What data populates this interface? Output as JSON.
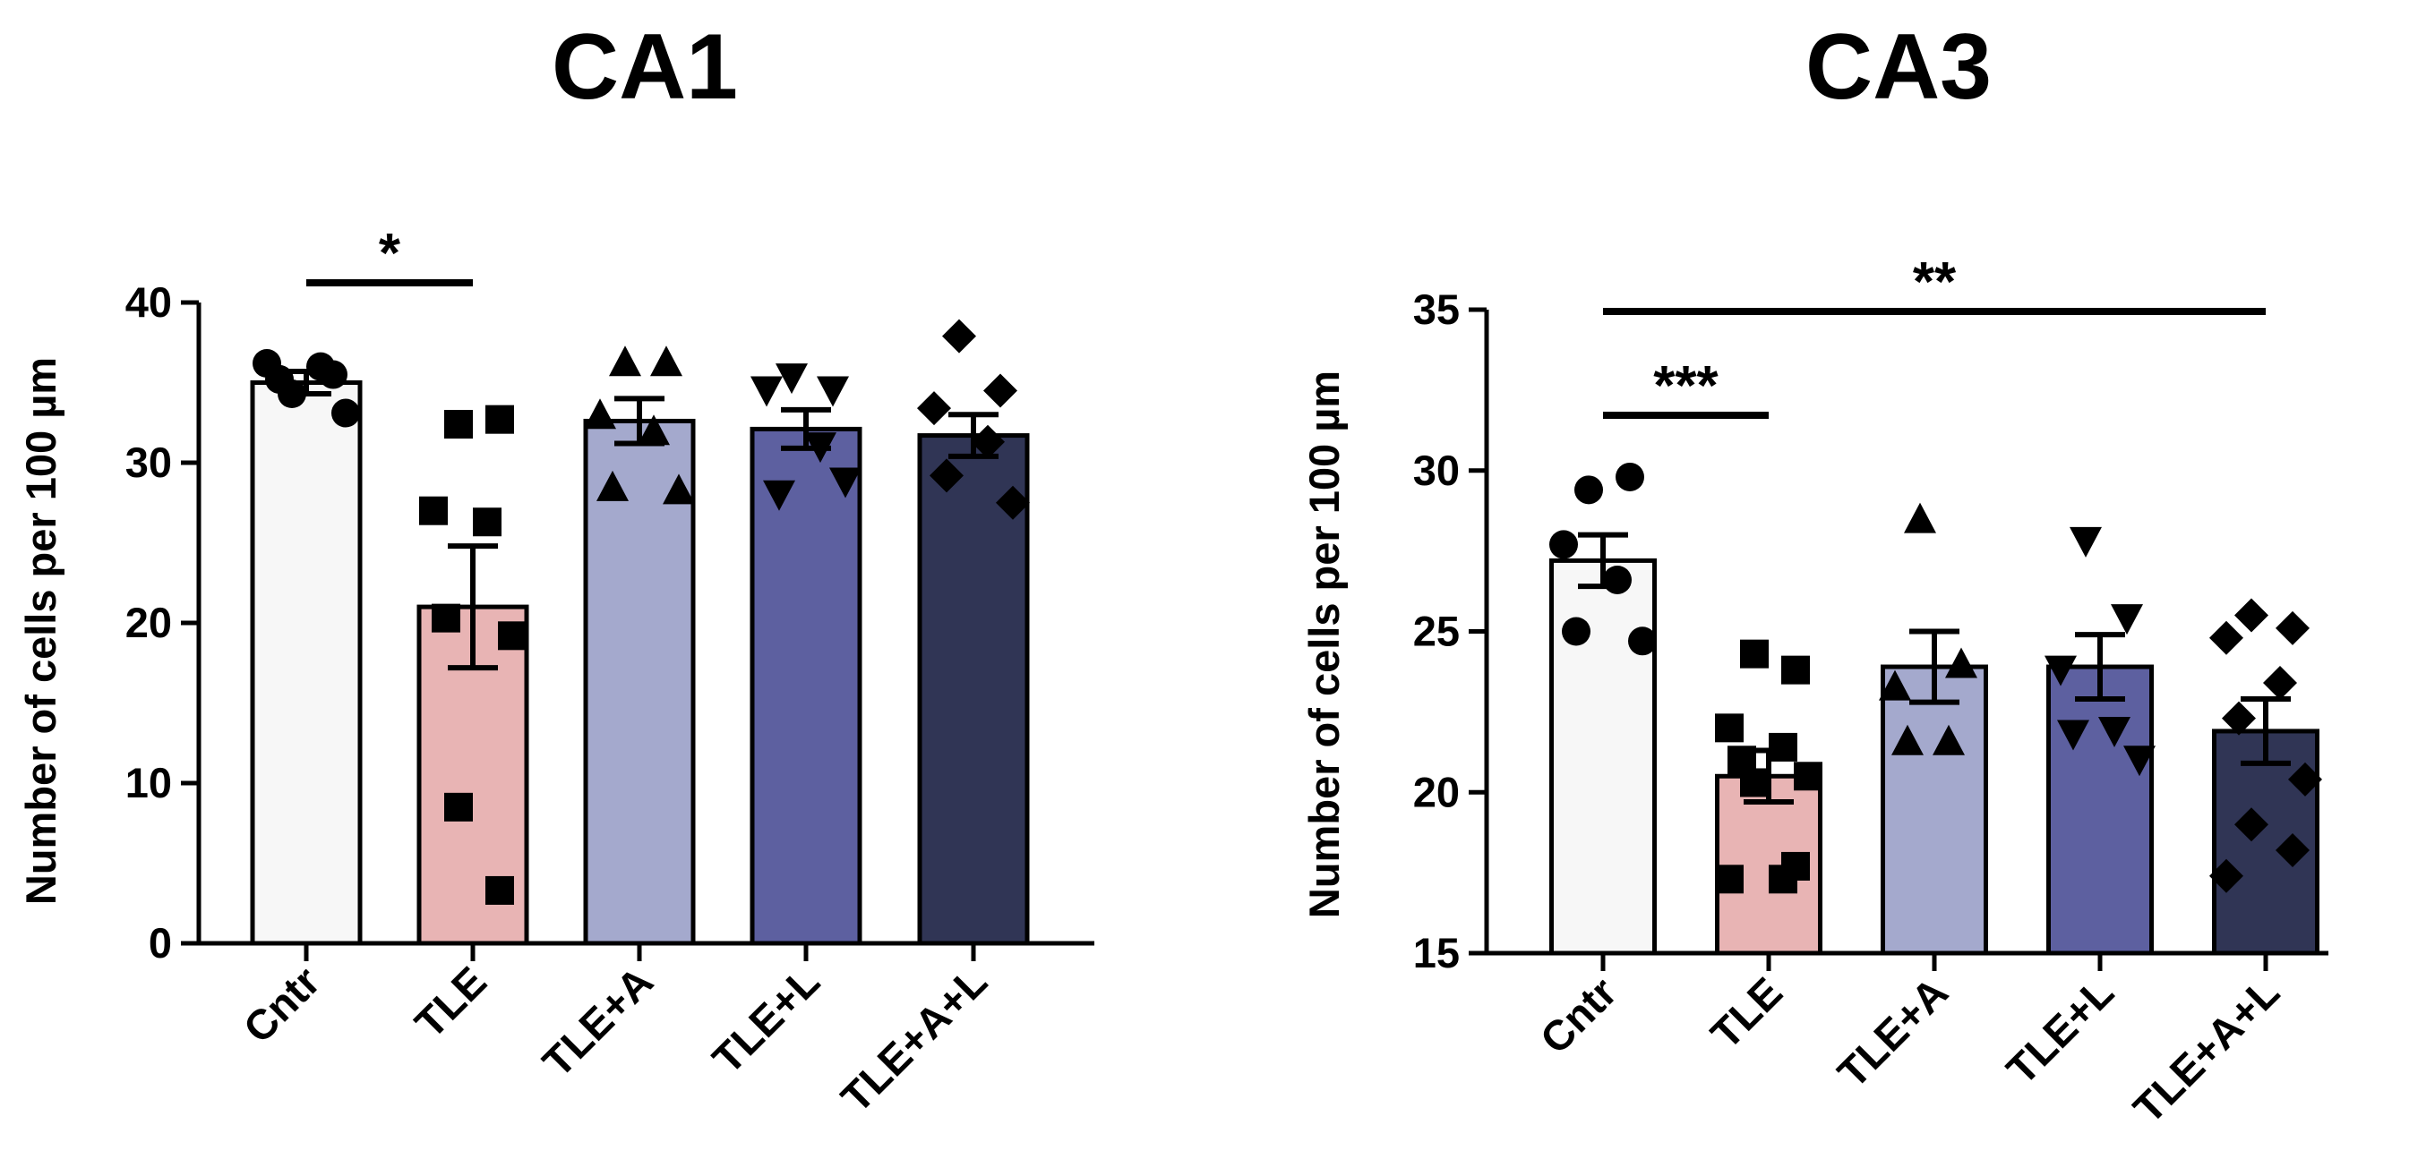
{
  "chart_data": [
    {
      "type": "bar",
      "title": "CA1",
      "xlabel": "",
      "ylabel": "Number of cells per 100 µm",
      "ylim": [
        0,
        40
      ],
      "yticks": [
        0,
        10,
        20,
        30,
        40
      ],
      "categories": [
        "Cntr",
        "TLE",
        "TLE+A",
        "TLE+L",
        "TLE+A+L"
      ],
      "values": [
        35.0,
        21.0,
        32.6,
        32.1,
        31.7
      ],
      "errors": [
        0.7,
        3.8,
        1.4,
        1.2,
        1.3
      ],
      "colors": [
        "#f7f7f7",
        "#e8b4b4",
        "#a4a9cd",
        "#5d60a0",
        "#303555"
      ],
      "markers": [
        "circle",
        "square",
        "triangle-up",
        "triangle-down",
        "diamond"
      ],
      "points": [
        [
          34.3,
          35.5,
          36.2,
          36.0,
          35.2,
          33.1
        ],
        [
          32.4,
          32.7,
          27.0,
          26.3,
          20.3,
          19.2,
          8.5,
          3.3
        ],
        [
          36.3,
          36.3,
          33.0,
          32.0,
          28.5,
          28.3
        ],
        [
          35.3,
          34.5,
          34.5,
          31.0,
          28.0,
          28.8
        ],
        [
          37.9,
          34.5,
          33.4,
          31.3,
          29.2,
          27.5
        ]
      ],
      "significance": [
        {
          "from": 0,
          "to": 1,
          "label": "*"
        }
      ]
    },
    {
      "type": "bar",
      "title": "CA3",
      "xlabel": "",
      "ylabel": "Number of cells per 100 µm",
      "ylim": [
        15,
        35
      ],
      "yticks": [
        15,
        20,
        25,
        30,
        35
      ],
      "categories": [
        "Cntr",
        "TLE",
        "TLE+A",
        "TLE+L",
        "TLE+A+L"
      ],
      "values": [
        27.2,
        20.5,
        23.9,
        23.9,
        21.9
      ],
      "errors": [
        0.8,
        0.8,
        1.1,
        1.0,
        1.0
      ],
      "colors": [
        "#f7f7f7",
        "#e8b4b4",
        "#a4a9cd",
        "#5d60a0",
        "#303555"
      ],
      "markers": [
        "circle",
        "square",
        "triangle-up",
        "triangle-down",
        "diamond"
      ],
      "points": [
        [
          29.4,
          29.8,
          27.7,
          26.6,
          25.0,
          24.7
        ],
        [
          24.3,
          23.8,
          22.0,
          21.4,
          21.0,
          20.5,
          20.3,
          17.7,
          17.3,
          17.3
        ],
        [
          28.5,
          24.0,
          23.3,
          21.6,
          21.6
        ],
        [
          27.8,
          25.4,
          23.8,
          21.9,
          21.8,
          21.0
        ],
        [
          25.5,
          25.1,
          24.8,
          23.4,
          22.3,
          20.4,
          19.0,
          18.2,
          17.4
        ]
      ],
      "significance": [
        {
          "from": 0,
          "to": 4,
          "label": "**"
        },
        {
          "from": 0,
          "to": 1,
          "label": "***"
        }
      ]
    }
  ]
}
